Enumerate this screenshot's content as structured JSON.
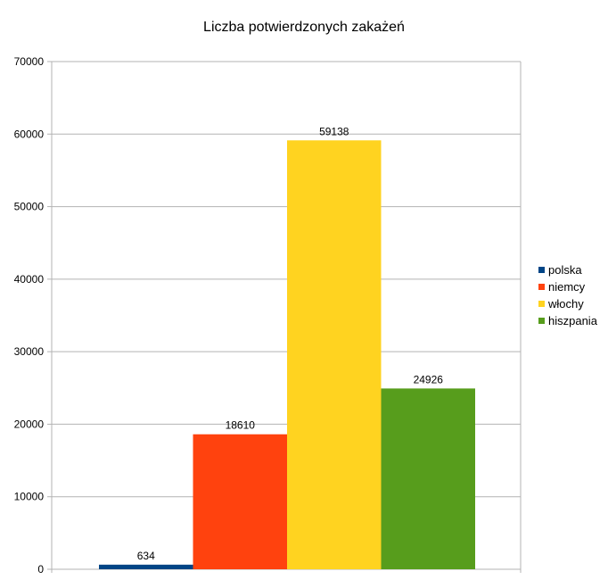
{
  "chart_data": {
    "type": "bar",
    "title": "Liczba potwierdzonych zakażeń",
    "xlabel": "",
    "ylabel": "",
    "ylim": [
      0,
      70000
    ],
    "yticks": [
      0,
      10000,
      20000,
      30000,
      40000,
      50000,
      60000,
      70000
    ],
    "grid": true,
    "legend_position": "right",
    "series": [
      {
        "name": "polska",
        "value": 634,
        "color": "#004586"
      },
      {
        "name": "niemcy",
        "value": 18610,
        "color": "#ff420e"
      },
      {
        "name": "włochy",
        "value": 59138,
        "color": "#ffd320"
      },
      {
        "name": "hiszpania",
        "value": 24926,
        "color": "#579d1c"
      }
    ]
  }
}
